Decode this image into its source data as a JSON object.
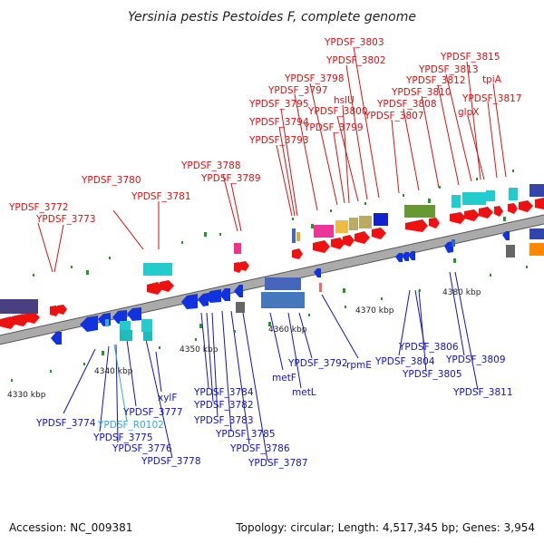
{
  "title": "Yersinia pestis Pestoides F, complete genome",
  "footer": {
    "accession": "Accession: NC_009381",
    "summary": "Topology: circular; Length: 4,517,345 bp; Genes: 3,954"
  },
  "colors": {
    "top_labels": "#dd1111",
    "bottom_labels": "#1111cc",
    "rna_label": "#33aadd"
  },
  "kbp_ticks": [
    "4330 kbp",
    "4340 kbp",
    "4350 kbp",
    "4360 kbp",
    "4370 kbp",
    "4380 kbp"
  ],
  "labels_top": [
    "YPDSF_3772",
    "YPDSF_3773",
    "YPDSF_3780",
    "YPDSF_3781",
    "YPDSF_3788",
    "YPDSF_3789",
    "YPDSF_3793",
    "YPDSF_3794",
    "YPDSF_3795",
    "YPDSF_3797",
    "YPDSF_3798",
    "hslU",
    "YPDSF_3800",
    "YPDSF_3799",
    "YPDSF_3802",
    "YPDSF_3803",
    "YPDSF_3807",
    "YPDSF_3808",
    "YPDSF_3810",
    "YPDSF_3812",
    "YPDSF_3813",
    "YPDSF_3815",
    "glpX",
    "tpiA",
    "YPDSF_3817"
  ],
  "labels_bottom": [
    "YPDSF_3774",
    "YPDSF_R0102",
    "YPDSF_3775",
    "YPDSF_3776",
    "YPDSF_3777",
    "YPDSF_3778",
    "xylF",
    "YPDSF_3784",
    "YPDSF_3782",
    "YPDSF_3783",
    "YPDSF_3785",
    "YPDSF_3786",
    "YPDSF_3787",
    "metF",
    "metL",
    "YPDSF_3792",
    "rpmE",
    "YPDSF_3804",
    "YPDSF_3806",
    "YPDSF_3805",
    "YPDSF_3809",
    "YPDSF_3811"
  ]
}
